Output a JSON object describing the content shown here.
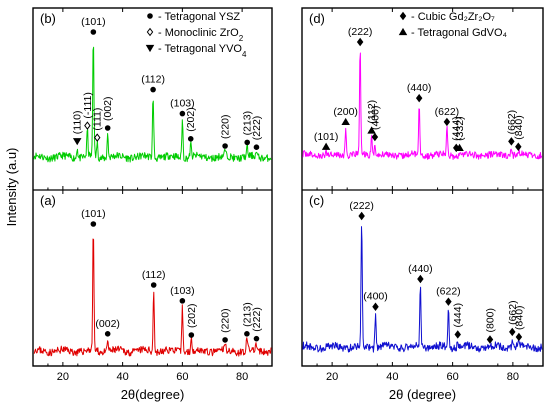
{
  "chart_data": [
    {
      "panel": "(b)",
      "type": "line",
      "color": "#00cc00",
      "xlabel": "",
      "ylabel": "Intensity (a.u)",
      "xlim": [
        10,
        90
      ],
      "x_ticks": [
        20,
        40,
        60,
        80
      ],
      "legend_position": "top-right",
      "legend": [
        {
          "marker": "circle",
          "text": "- Tetragonal YSZ"
        },
        {
          "marker": "diamond-open",
          "text": "- Monoclinic ZrO",
          "sub": "2"
        },
        {
          "marker": "triangle-down",
          "text": "- Tetragonal YVO",
          "sub": "4"
        }
      ],
      "peaks": [
        {
          "x": 24.8,
          "y": 0.09,
          "label": "(110)",
          "marker": "triangle-down",
          "label_rotate": -90
        },
        {
          "x": 28.2,
          "y": 0.22,
          "label": "(-111)",
          "marker": "diamond-open",
          "label_rotate": -90
        },
        {
          "x": 30.2,
          "y": 1.0,
          "label": "(101)",
          "marker": "circle",
          "label_rotate": 0
        },
        {
          "x": 31.5,
          "y": 0.12,
          "label": "(111)",
          "marker": "diamond-open",
          "label_rotate": -90
        },
        {
          "x": 35.0,
          "y": 0.2,
          "label": "(002)",
          "marker": "circle",
          "label_rotate": -90
        },
        {
          "x": 50.2,
          "y": 0.52,
          "label": "(112)",
          "marker": "circle",
          "label_rotate": 0
        },
        {
          "x": 60.0,
          "y": 0.32,
          "label": "(103)",
          "marker": "circle",
          "label_rotate": 0
        },
        {
          "x": 62.8,
          "y": 0.11,
          "label": "(202)",
          "marker": "circle",
          "label_rotate": -90
        },
        {
          "x": 74.3,
          "y": 0.05,
          "label": "(220)",
          "marker": "circle",
          "label_rotate": -90
        },
        {
          "x": 81.7,
          "y": 0.08,
          "label": "(213)",
          "marker": "circle",
          "label_rotate": -90
        },
        {
          "x": 84.8,
          "y": 0.04,
          "label": "(222)",
          "marker": "circle",
          "label_rotate": -90
        }
      ]
    },
    {
      "panel": "(a)",
      "type": "line",
      "color": "#e00000",
      "xlabel": "2θ(degree)",
      "ylabel": "Intensity (a.u)",
      "xlim": [
        10,
        90
      ],
      "x_ticks": [
        20,
        40,
        60,
        80
      ],
      "peaks": [
        {
          "x": 30.2,
          "y": 1.0,
          "label": "(101)",
          "marker": "circle",
          "label_rotate": 0
        },
        {
          "x": 35.0,
          "y": 0.1,
          "label": "(002)",
          "marker": "circle",
          "label_rotate": 0
        },
        {
          "x": 50.4,
          "y": 0.5,
          "label": "(112)",
          "marker": "circle",
          "label_rotate": 0
        },
        {
          "x": 60.0,
          "y": 0.37,
          "label": "(103)",
          "marker": "circle",
          "label_rotate": 0
        },
        {
          "x": 63.0,
          "y": 0.09,
          "label": "(202)",
          "marker": "circle",
          "label_rotate": -90
        },
        {
          "x": 74.3,
          "y": 0.05,
          "label": "(220)",
          "marker": "circle",
          "label_rotate": -90
        },
        {
          "x": 81.6,
          "y": 0.1,
          "label": "(213)",
          "marker": "circle",
          "label_rotate": -90
        },
        {
          "x": 84.8,
          "y": 0.06,
          "label": "(222)",
          "marker": "circle",
          "label_rotate": -90
        }
      ]
    },
    {
      "panel": "(d)",
      "type": "line",
      "color": "#ff00ff",
      "xlabel": "",
      "ylabel": "",
      "xlim": [
        10,
        90
      ],
      "x_ticks": [
        20,
        40,
        60,
        80
      ],
      "legend_position": "top-right",
      "legend": [
        {
          "marker": "diamond",
          "text": "- Cubic Gd₂Zr₂O₇"
        },
        {
          "marker": "triangle-up",
          "text": "- Tetragonal GdVO₄"
        }
      ],
      "peaks": [
        {
          "x": 18.0,
          "y": 0.03,
          "label": "(101)",
          "marker": "triangle-up",
          "label_rotate": 0
        },
        {
          "x": 24.5,
          "y": 0.26,
          "label": "(200)",
          "marker": "triangle-up",
          "label_rotate": 0
        },
        {
          "x": 29.3,
          "y": 1.0,
          "label": "(222)",
          "marker": "diamond",
          "label_rotate": 0
        },
        {
          "x": 33.1,
          "y": 0.18,
          "label": "(112)",
          "marker": "triangle-up",
          "label_rotate": -90
        },
        {
          "x": 34.2,
          "y": 0.12,
          "label": "(400)",
          "marker": "diamond",
          "label_rotate": -90
        },
        {
          "x": 48.9,
          "y": 0.48,
          "label": "(440)",
          "marker": "diamond",
          "label_rotate": 0
        },
        {
          "x": 58.1,
          "y": 0.26,
          "label": "(622)",
          "marker": "diamond",
          "label_rotate": 0
        },
        {
          "x": 61.2,
          "y": 0.02,
          "label": "(444)",
          "marker": "diamond",
          "label_rotate": -90
        },
        {
          "x": 62.3,
          "y": 0.02,
          "label": "(332)",
          "marker": "triangle-up",
          "label_rotate": -90
        },
        {
          "x": 79.5,
          "y": 0.08,
          "label": "(662)",
          "marker": "diamond",
          "label_rotate": -90
        },
        {
          "x": 81.8,
          "y": 0.03,
          "label": "(840)",
          "marker": "diamond",
          "label_rotate": -90
        }
      ]
    },
    {
      "panel": "(c)",
      "type": "line",
      "color": "#1010d0",
      "xlabel": "2θ (degree)",
      "ylabel": "",
      "xlim": [
        10,
        90
      ],
      "x_ticks": [
        20,
        40,
        60,
        80
      ],
      "peaks": [
        {
          "x": 29.8,
          "y": 1.0,
          "label": "(222)",
          "marker": "diamond",
          "label_rotate": 0
        },
        {
          "x": 34.4,
          "y": 0.28,
          "label": "(400)",
          "marker": "diamond",
          "label_rotate": 0
        },
        {
          "x": 49.3,
          "y": 0.5,
          "label": "(440)",
          "marker": "diamond",
          "label_rotate": 0
        },
        {
          "x": 58.6,
          "y": 0.32,
          "label": "(622)",
          "marker": "diamond",
          "label_rotate": 0
        },
        {
          "x": 61.7,
          "y": 0.06,
          "label": "(444)",
          "marker": "diamond",
          "label_rotate": -90
        },
        {
          "x": 72.4,
          "y": 0.02,
          "label": "(800)",
          "marker": "diamond",
          "label_rotate": -90
        },
        {
          "x": 79.8,
          "y": 0.08,
          "label": "(662)",
          "marker": "diamond",
          "label_rotate": -90
        },
        {
          "x": 82.0,
          "y": 0.04,
          "label": "(840)",
          "marker": "diamond",
          "label_rotate": -90
        }
      ]
    }
  ]
}
